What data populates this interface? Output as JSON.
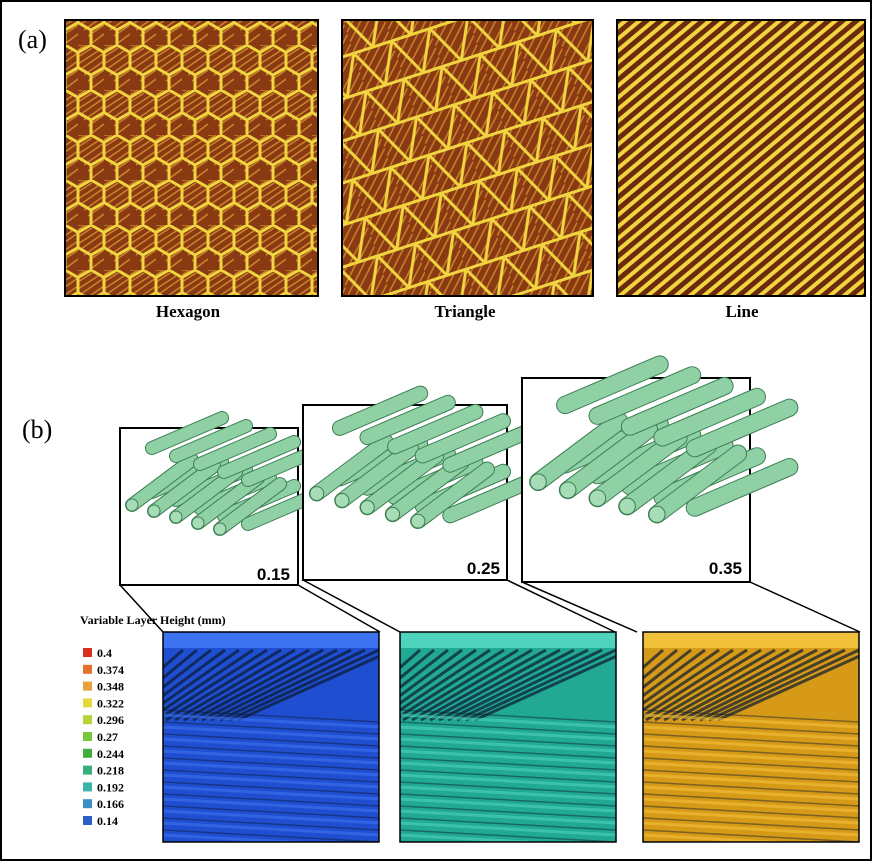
{
  "panel_a": {
    "label": "(a)",
    "images": [
      {
        "caption": "Hexagon"
      },
      {
        "caption": "Triangle"
      },
      {
        "caption": "Line"
      }
    ]
  },
  "panel_b": {
    "label": "(b)",
    "models": [
      {
        "layer_height": "0.15"
      },
      {
        "layer_height": "0.25"
      },
      {
        "layer_height": "0.35"
      }
    ],
    "legend": {
      "title": "Variable Layer Height (mm)",
      "items": [
        {
          "label": "0.4",
          "color": "#d7301f"
        },
        {
          "label": "0.374",
          "color": "#e0702a"
        },
        {
          "label": "0.348",
          "color": "#e7a23a"
        },
        {
          "label": "0.322",
          "color": "#e3d93a"
        },
        {
          "label": "0.296",
          "color": "#b4d43a"
        },
        {
          "label": "0.27",
          "color": "#79c63a"
        },
        {
          "label": "0.244",
          "color": "#3fae3a"
        },
        {
          "label": "0.218",
          "color": "#3aae7a"
        },
        {
          "label": "0.192",
          "color": "#38b5a8"
        },
        {
          "label": "0.166",
          "color": "#3a8ec6"
        },
        {
          "label": "0.14",
          "color": "#2d5fc8"
        }
      ]
    }
  }
}
